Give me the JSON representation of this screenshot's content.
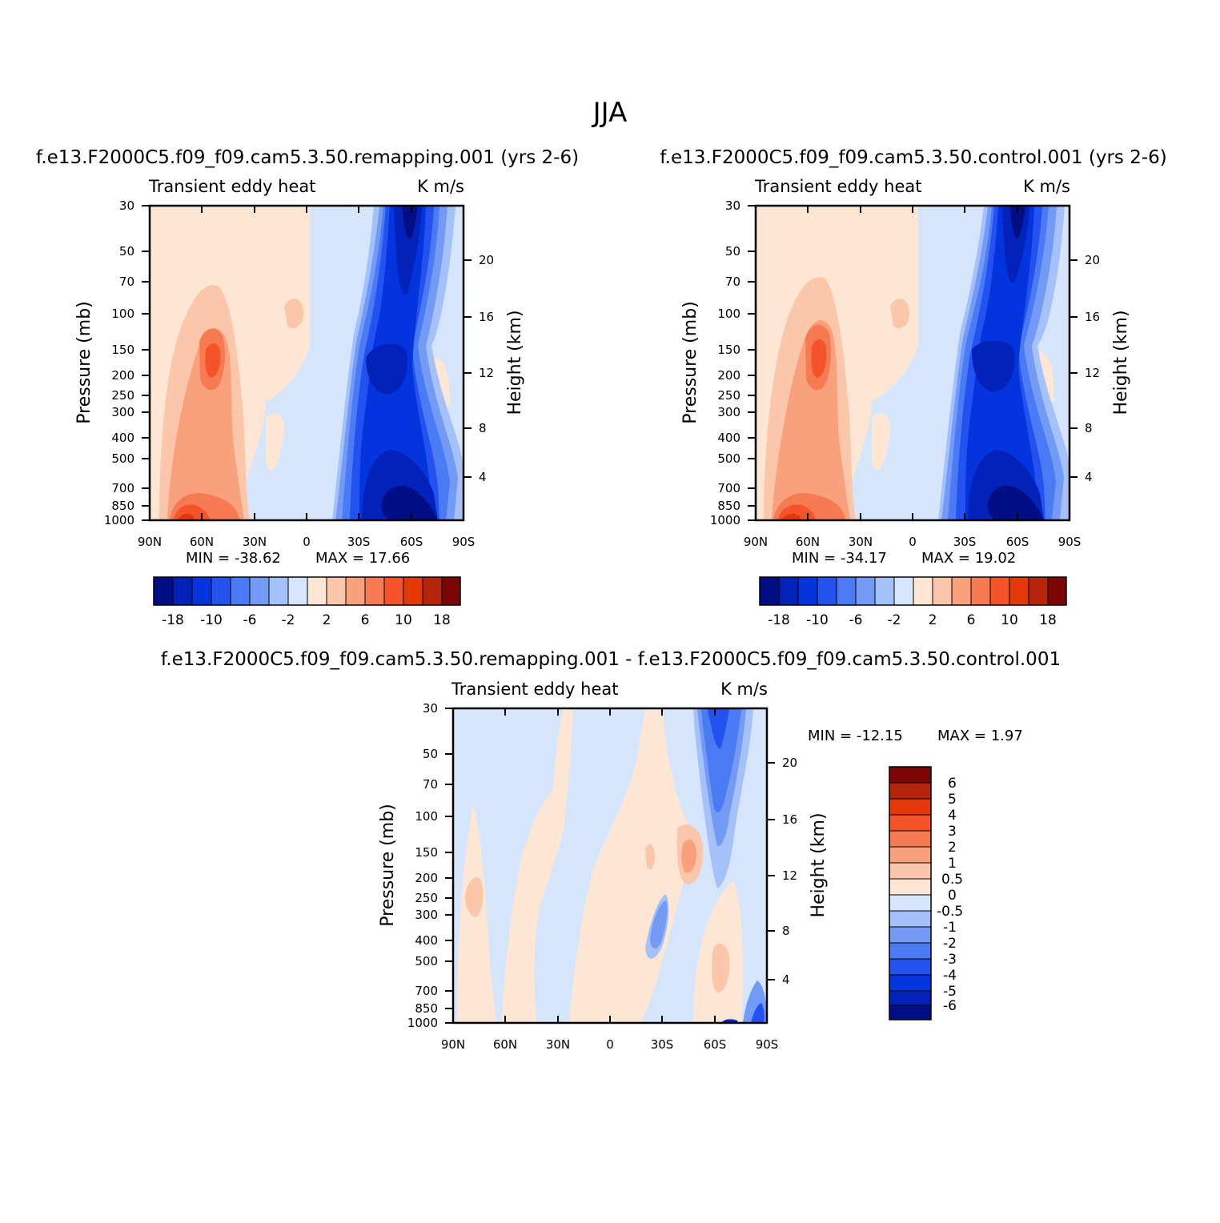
{
  "figure": {
    "title": "JJA"
  },
  "colors": {
    "blue9": "#020e86",
    "blue8": "#0222ba",
    "blue7": "#0334dd",
    "blue6": "#2452f0",
    "blue5": "#4b7af5",
    "blue4": "#739bf6",
    "blue3": "#a5c1fa",
    "blue2": "#d5e5fc",
    "red2": "#fde6d4",
    "red3": "#fcc6aa",
    "red4": "#f9a07c",
    "red5": "#f77b52",
    "red6": "#f5532a",
    "red7": "#e43809",
    "red8": "#b5250b",
    "red9": "#7e0505"
  },
  "chart_data": [
    {
      "type": "heatmap",
      "title": "f.e13.F2000C5.f09_f09.cam5.3.50.remapping.001 (yrs 2-6)",
      "left_label": "Transient eddy heat",
      "right_label": "K m/s",
      "ylabel": "Pressure (mb)",
      "ylabel_right": "Height (km)",
      "x_ticks": [
        "90N",
        "60N",
        "30N",
        "0",
        "30S",
        "60S",
        "90S"
      ],
      "y_ticks": [
        "30",
        "50",
        "70",
        "100",
        "150",
        "200",
        "250",
        "300",
        "400",
        "500",
        "700",
        "850",
        "1000"
      ],
      "y_right_ticks": [
        "20",
        "16",
        "12",
        "8",
        "4"
      ],
      "min_label": "MIN = -38.62",
      "max_label": "MAX = 17.66",
      "min": -38.62,
      "max": 17.66,
      "colorbar_labels": [
        "-18",
        "-10",
        "-6",
        "-2",
        "2",
        "6",
        "10",
        "18"
      ]
    },
    {
      "type": "heatmap",
      "title": "f.e13.F2000C5.f09_f09.cam5.3.50.control.001 (yrs 2-6)",
      "left_label": "Transient eddy heat",
      "right_label": "K m/s",
      "ylabel": "Pressure (mb)",
      "ylabel_right": "Height (km)",
      "x_ticks": [
        "90N",
        "60N",
        "30N",
        "0",
        "30S",
        "60S",
        "90S"
      ],
      "y_ticks": [
        "30",
        "50",
        "70",
        "100",
        "150",
        "200",
        "250",
        "300",
        "400",
        "500",
        "700",
        "850",
        "1000"
      ],
      "y_right_ticks": [
        "20",
        "16",
        "12",
        "8",
        "4"
      ],
      "min_label": "MIN = -34.17",
      "max_label": "MAX = 19.02",
      "min": -34.17,
      "max": 19.02,
      "colorbar_labels": [
        "-18",
        "-10",
        "-6",
        "-2",
        "2",
        "6",
        "10",
        "18"
      ]
    },
    {
      "type": "heatmap",
      "title": "f.e13.F2000C5.f09_f09.cam5.3.50.remapping.001 - f.e13.F2000C5.f09_f09.cam5.3.50.control.001",
      "left_label": "Transient eddy heat",
      "right_label": "K m/s",
      "ylabel": "Pressure (mb)",
      "ylabel_right": "Height (km)",
      "x_ticks": [
        "90N",
        "60N",
        "30N",
        "0",
        "30S",
        "60S",
        "90S"
      ],
      "y_ticks": [
        "30",
        "50",
        "70",
        "100",
        "150",
        "200",
        "250",
        "300",
        "400",
        "500",
        "700",
        "850",
        "1000"
      ],
      "y_right_ticks": [
        "20",
        "16",
        "12",
        "8",
        "4"
      ],
      "min_label": "MIN = -12.15",
      "max_label": "MAX = 1.97",
      "min": -12.15,
      "max": 1.97,
      "colorbar_labels": [
        "6",
        "5",
        "4",
        "3",
        "2",
        "1",
        "0.5",
        "0",
        "-0.5",
        "-1",
        "-2",
        "-3",
        "-4",
        "-5",
        "-6"
      ]
    }
  ]
}
